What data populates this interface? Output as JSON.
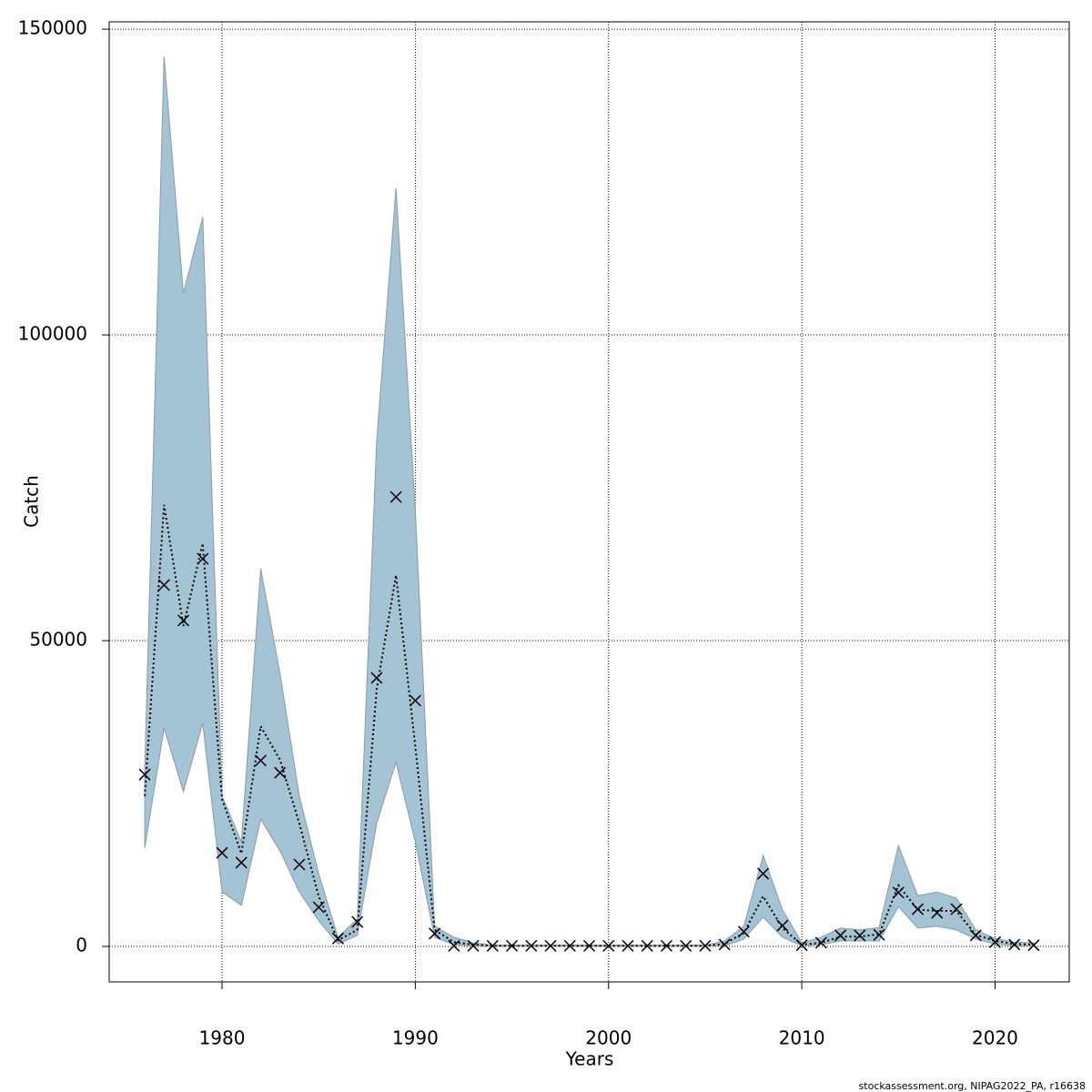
{
  "chart_data": {
    "type": "band-line",
    "x_label": "Years",
    "y_label": "Catch",
    "caption": "stockassessment.org, NIPAG2022_PA, r16638",
    "x": [
      1976,
      1977,
      1978,
      1979,
      1980,
      1981,
      1982,
      1983,
      1984,
      1985,
      1986,
      1987,
      1988,
      1989,
      1990,
      1991,
      1992,
      1993,
      1994,
      1995,
      1996,
      1997,
      1998,
      1999,
      2000,
      2001,
      2002,
      2003,
      2004,
      2005,
      2006,
      2007,
      2008,
      2009,
      2010,
      2011,
      2012,
      2013,
      2014,
      2015,
      2016,
      2017,
      2018,
      2019,
      2020,
      2021,
      2022
    ],
    "series": [
      {
        "type": "band",
        "color": "#a4c3d5",
        "edge_color": "#8a9ba6",
        "lower": [
          16100,
          35700,
          25300,
          36500,
          8900,
          6700,
          20800,
          15600,
          8900,
          4200,
          400,
          1800,
          20100,
          30100,
          17100,
          1500,
          300,
          50,
          50,
          50,
          50,
          50,
          50,
          50,
          50,
          50,
          50,
          50,
          50,
          50,
          100,
          1200,
          4800,
          1500,
          100,
          300,
          900,
          900,
          900,
          6500,
          3000,
          3300,
          2700,
          1200,
          400,
          100,
          100
        ],
        "upper": [
          29000,
          145500,
          106800,
          119300,
          24600,
          17100,
          61800,
          44600,
          24600,
          11900,
          1500,
          4500,
          82600,
          124000,
          71400,
          3300,
          1500,
          600,
          200,
          200,
          200,
          200,
          200,
          200,
          200,
          200,
          200,
          200,
          200,
          200,
          900,
          3300,
          14900,
          6000,
          600,
          1500,
          3000,
          2700,
          3100,
          16500,
          8300,
          8900,
          7900,
          2700,
          1300,
          700,
          600
        ]
      },
      {
        "type": "line",
        "color": "#000000",
        "dotted": true,
        "values": [
          24600,
          72200,
          52400,
          65900,
          24100,
          15200,
          36000,
          30500,
          20100,
          8200,
          1000,
          2700,
          42000,
          60700,
          32700,
          2700,
          700,
          300,
          100,
          100,
          100,
          100,
          100,
          100,
          100,
          100,
          100,
          100,
          100,
          100,
          400,
          2200,
          8200,
          3000,
          300,
          600,
          1600,
          1600,
          2000,
          10000,
          6000,
          5800,
          5800,
          1900,
          900,
          400,
          300
        ]
      },
      {
        "type": "points",
        "color": "#000000",
        "marker": "x",
        "values": [
          28100,
          59100,
          53300,
          63400,
          15300,
          13700,
          30400,
          28400,
          13400,
          6400,
          1300,
          4000,
          43900,
          73500,
          40200,
          2100,
          100,
          100,
          100,
          100,
          100,
          100,
          100,
          100,
          100,
          100,
          100,
          100,
          100,
          100,
          300,
          2400,
          11900,
          3400,
          200,
          600,
          1800,
          1800,
          1900,
          8800,
          6100,
          5500,
          6100,
          1800,
          700,
          300,
          200
        ]
      }
    ],
    "xlim": [
      1974.16,
      2023.84
    ],
    "xticks": [
      1980,
      1990,
      2000,
      2010,
      2020
    ],
    "ylim": [
      -5800,
      151200
    ],
    "yticks": [
      0,
      50000,
      100000,
      150000
    ],
    "grid": true
  }
}
